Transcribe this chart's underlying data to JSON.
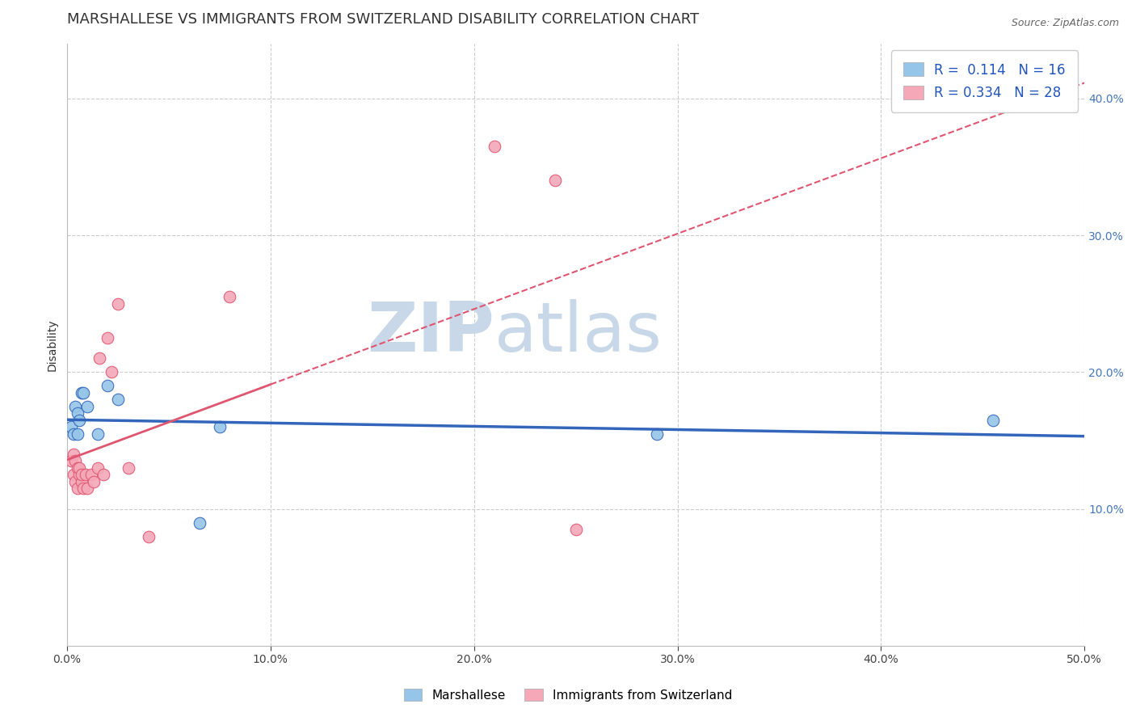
{
  "title": "MARSHALLESE VS IMMIGRANTS FROM SWITZERLAND DISABILITY CORRELATION CHART",
  "source": "Source: ZipAtlas.com",
  "xlabel": "",
  "ylabel": "Disability",
  "xlim": [
    0.0,
    0.5
  ],
  "ylim": [
    0.0,
    0.44
  ],
  "xticks": [
    0.0,
    0.1,
    0.2,
    0.3,
    0.4,
    0.5
  ],
  "xtick_labels": [
    "0.0%",
    "10.0%",
    "20.0%",
    "30.0%",
    "40.0%",
    "50.0%"
  ],
  "yticks": [
    0.1,
    0.2,
    0.3,
    0.4
  ],
  "ytick_labels": [
    "10.0%",
    "20.0%",
    "30.0%",
    "40.0%"
  ],
  "blue_R": "0.114",
  "blue_N": "16",
  "pink_R": "0.334",
  "pink_N": "28",
  "blue_color": "#95C5E8",
  "pink_color": "#F4A8B8",
  "blue_line_color": "#3366BB",
  "pink_line_color": "#E05570",
  "grid_color": "#CCCCCC",
  "watermark_color": "#C8D8E8",
  "blue_points_x": [
    0.002,
    0.003,
    0.004,
    0.005,
    0.005,
    0.006,
    0.007,
    0.008,
    0.01,
    0.015,
    0.02,
    0.025,
    0.065,
    0.075,
    0.29,
    0.455
  ],
  "blue_points_y": [
    0.16,
    0.155,
    0.175,
    0.17,
    0.155,
    0.165,
    0.185,
    0.185,
    0.175,
    0.155,
    0.19,
    0.18,
    0.09,
    0.16,
    0.155,
    0.165
  ],
  "pink_points_x": [
    0.002,
    0.003,
    0.003,
    0.004,
    0.004,
    0.005,
    0.005,
    0.006,
    0.006,
    0.007,
    0.007,
    0.008,
    0.009,
    0.01,
    0.012,
    0.013,
    0.015,
    0.016,
    0.018,
    0.02,
    0.022,
    0.025,
    0.03,
    0.04,
    0.08,
    0.21,
    0.24,
    0.25
  ],
  "pink_points_y": [
    0.135,
    0.14,
    0.125,
    0.135,
    0.12,
    0.13,
    0.115,
    0.125,
    0.13,
    0.12,
    0.125,
    0.115,
    0.125,
    0.115,
    0.125,
    0.12,
    0.13,
    0.21,
    0.125,
    0.225,
    0.2,
    0.25,
    0.13,
    0.08,
    0.255,
    0.365,
    0.34,
    0.085
  ],
  "background_color": "#FFFFFF",
  "title_fontsize": 13,
  "axis_label_fontsize": 10,
  "tick_fontsize": 10,
  "legend_fontsize": 12,
  "pink_line_x_solid_end": 0.1,
  "pink_line_x_dashed_start": 0.1
}
